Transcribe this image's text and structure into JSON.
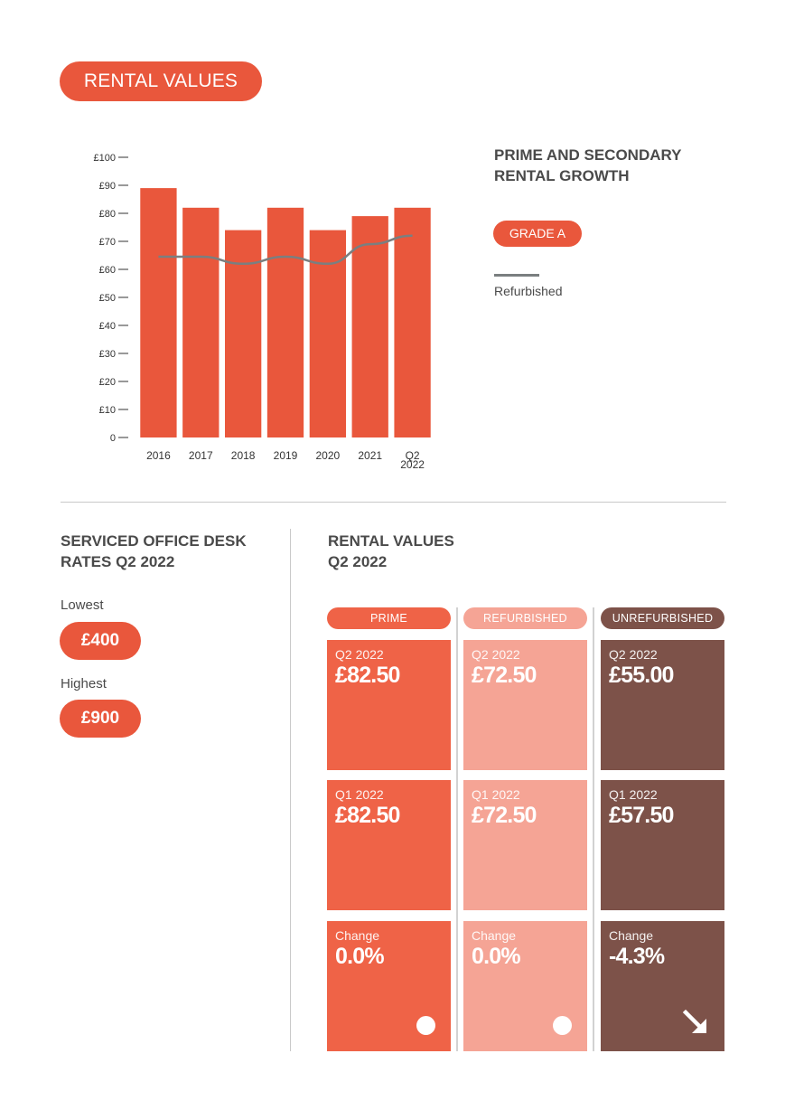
{
  "header": {
    "title": "RENTAL VALUES"
  },
  "chart_panel": {
    "heading_line1": "PRIME AND SECONDARY",
    "heading_line2": "RENTAL GROWTH",
    "legend_bar_label": "GRADE A",
    "legend_line_label": "Refurbished"
  },
  "chart_data": {
    "type": "bar",
    "categories": [
      "2016",
      "2017",
      "2018",
      "2019",
      "2020",
      "2021",
      "Q2 2022"
    ],
    "series": [
      {
        "name": "GRADE A",
        "type": "bar",
        "values": [
          89,
          82,
          74,
          82,
          74,
          79,
          82
        ]
      },
      {
        "name": "Refurbished",
        "type": "line",
        "values": [
          64.5,
          64.5,
          62,
          64.5,
          62,
          69,
          72
        ]
      }
    ],
    "y_ticks": [
      "0",
      "£10",
      "£20",
      "£30",
      "£40",
      "£50",
      "£60",
      "£70",
      "£80",
      "£90",
      "£100"
    ],
    "ylim": [
      0,
      100
    ],
    "grid": false,
    "colors": {
      "bar": "#e9573c",
      "line": "#7a7f80"
    }
  },
  "desk_rates": {
    "heading_line1": "SERVICED OFFICE DESK",
    "heading_line2": "RATES Q2 2022",
    "lowest_label": "Lowest",
    "lowest_value": "£400",
    "highest_label": "Highest",
    "highest_value": "£900"
  },
  "rental_values": {
    "heading_line1": "RENTAL VALUES",
    "heading_line2": "Q2 2022",
    "columns": [
      {
        "name": "PRIME",
        "tiles": [
          {
            "label": "Q2 2022",
            "value": "£82.50"
          },
          {
            "label": "Q1 2022",
            "value": "£82.50"
          },
          {
            "label": "Change",
            "value": "0.0%",
            "indicator": "circle"
          }
        ]
      },
      {
        "name": "REFURBISHED",
        "tiles": [
          {
            "label": "Q2 2022",
            "value": "£72.50"
          },
          {
            "label": "Q1 2022",
            "value": "£72.50"
          },
          {
            "label": "Change",
            "value": "0.0%",
            "indicator": "circle"
          }
        ]
      },
      {
        "name": "UNREFURBISHED",
        "tiles": [
          {
            "label": "Q2 2022",
            "value": "£55.00"
          },
          {
            "label": "Q1 2022",
            "value": "£57.50"
          },
          {
            "label": "Change",
            "value": "-4.3%",
            "indicator": "arrow-down-right-icon"
          }
        ]
      }
    ],
    "colors": {
      "prime": "#ef6347",
      "refurbished": "#f5a495",
      "unrefurbished": "#7d5249"
    }
  }
}
